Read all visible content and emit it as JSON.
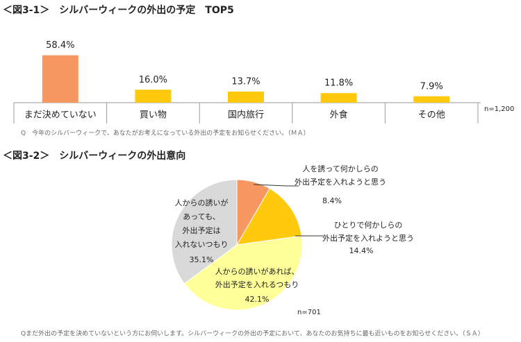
{
  "chart_data": [
    {
      "type": "bar",
      "title": "＜図3-1＞　シルバーウィークの外出の予定　TOP5",
      "categories": [
        "まだ決めていない",
        "買い物",
        "国内旅行",
        "外食",
        "その他"
      ],
      "values": [
        58.4,
        16.0,
        13.7,
        11.8,
        7.9
      ],
      "value_labels": [
        "58.4%",
        "16.0%",
        "13.7%",
        "11.8%",
        "7.9%"
      ],
      "colors": [
        "#f79862",
        "#ffc90e",
        "#ffc90e",
        "#ffc90e",
        "#ffc90e"
      ],
      "note": "n=1,200",
      "footnote": "Q　今年のシルバーウィークで、あなたがお考えになっている外出の予定をお知らせください。（ＭＡ）"
    },
    {
      "type": "pie",
      "title": "＜図3-2＞　シルバーウィークの外出意向",
      "labels": [
        [
          "人を誘って何かしらの",
          "外出予定を入れようと思う"
        ],
        [
          "ひとりで何かしらの",
          "外出予定を入れようと思う"
        ],
        [
          "人からの誘いがあれば、",
          "外出予定を入れるつもり"
        ],
        [
          "人からの誘いが",
          "あっても、",
          "外出予定は",
          "入れないつもり"
        ]
      ],
      "values": [
        8.4,
        14.4,
        42.1,
        35.1
      ],
      "value_labels": [
        "8.4%",
        "14.4%",
        "42.1%",
        "35.1%"
      ],
      "colors": [
        "#f79862",
        "#ffc90e",
        "#ffff99",
        "#d9d9d9"
      ],
      "note": "n=701",
      "footnote": "Qまだ外出の予定を決めていないという方にお伺いします。シルバーウィークの外出の予定において、あなたのお気持ちに最も近いものをお知らせください。（ＳＡ）"
    }
  ]
}
